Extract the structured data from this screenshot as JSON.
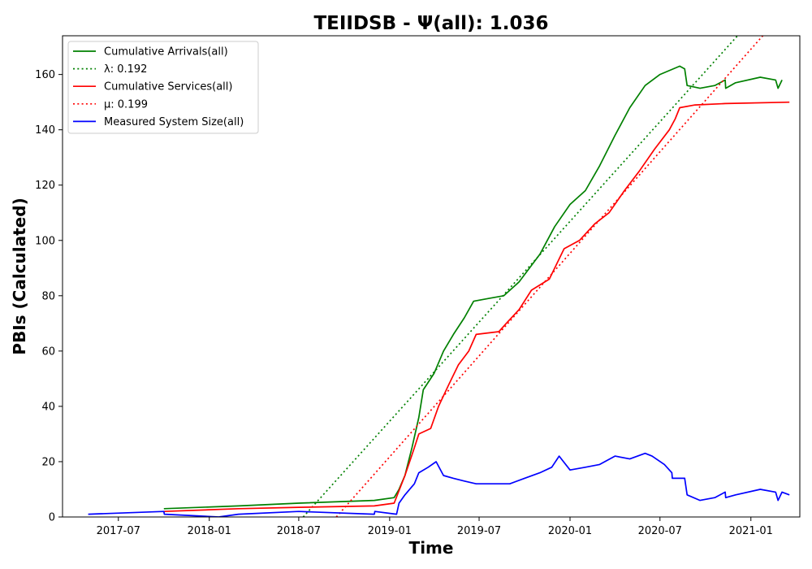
{
  "chart_data": {
    "type": "line",
    "title": "TEIIDSB -  Ψ(all): 1.036",
    "xlabel": "Time",
    "ylabel": "PBIs (Calculated)",
    "xlim": [
      "2017-03-10",
      "2021-04-10"
    ],
    "ylim": [
      0,
      174
    ],
    "x_ticks": [
      "2017-07",
      "2018-01",
      "2018-07",
      "2019-01",
      "2019-07",
      "2020-01",
      "2020-07",
      "2021-01"
    ],
    "y_ticks": [
      0,
      20,
      40,
      60,
      80,
      100,
      120,
      140,
      160
    ],
    "grid": false,
    "legend": "top-left",
    "series": [
      {
        "name": "Cumulative Arrivals(all)",
        "style": "solid",
        "color": "#008000",
        "points": [
          [
            "2017-10-01",
            3
          ],
          [
            "2018-03-01",
            4
          ],
          [
            "2018-07-01",
            5
          ],
          [
            "2018-12-01",
            6
          ],
          [
            "2019-01-10",
            7
          ],
          [
            "2019-01-20",
            10
          ],
          [
            "2019-02-01",
            15
          ],
          [
            "2019-02-15",
            25
          ],
          [
            "2019-03-01",
            36
          ],
          [
            "2019-03-10",
            46
          ],
          [
            "2019-04-01",
            52
          ],
          [
            "2019-04-20",
            60
          ],
          [
            "2019-05-10",
            66
          ],
          [
            "2019-06-01",
            72
          ],
          [
            "2019-06-20",
            78
          ],
          [
            "2019-07-20",
            79
          ],
          [
            "2019-08-20",
            80
          ],
          [
            "2019-09-20",
            85
          ],
          [
            "2019-11-01",
            95
          ],
          [
            "2019-12-01",
            105
          ],
          [
            "2020-01-01",
            113
          ],
          [
            "2020-02-01",
            118
          ],
          [
            "2020-03-01",
            127
          ],
          [
            "2020-04-01",
            138
          ],
          [
            "2020-05-01",
            148
          ],
          [
            "2020-06-01",
            156
          ],
          [
            "2020-07-01",
            160
          ],
          [
            "2020-08-10",
            163
          ],
          [
            "2020-08-20",
            162
          ],
          [
            "2020-08-25",
            156
          ],
          [
            "2020-09-20",
            155
          ],
          [
            "2020-10-20",
            156
          ],
          [
            "2020-11-10",
            158
          ],
          [
            "2020-11-11",
            155
          ],
          [
            "2020-12-01",
            157
          ],
          [
            "2021-01-20",
            159
          ],
          [
            "2021-02-20",
            158
          ],
          [
            "2021-02-25",
            155
          ],
          [
            "2021-03-05",
            158
          ]
        ]
      },
      {
        "name": "λ: 0.192",
        "style": "dotted",
        "color": "#008000",
        "points": [
          [
            "2018-07-10",
            0
          ],
          [
            "2020-12-05",
            174
          ]
        ]
      },
      {
        "name": "Cumulative Services(all)",
        "style": "solid",
        "color": "#ff0000",
        "points": [
          [
            "2017-10-01",
            2
          ],
          [
            "2018-03-01",
            3
          ],
          [
            "2018-07-01",
            3.5
          ],
          [
            "2018-12-01",
            4
          ],
          [
            "2019-01-10",
            5
          ],
          [
            "2019-02-01",
            15
          ],
          [
            "2019-02-20",
            25
          ],
          [
            "2019-03-01",
            30
          ],
          [
            "2019-03-25",
            32
          ],
          [
            "2019-04-10",
            40
          ],
          [
            "2019-05-01",
            48
          ],
          [
            "2019-05-20",
            55
          ],
          [
            "2019-06-10",
            60
          ],
          [
            "2019-06-25",
            66
          ],
          [
            "2019-08-10",
            67
          ],
          [
            "2019-08-25",
            70
          ],
          [
            "2019-09-20",
            75
          ],
          [
            "2019-10-15",
            82
          ],
          [
            "2019-11-20",
            86
          ],
          [
            "2019-12-20",
            97
          ],
          [
            "2020-01-20",
            100
          ],
          [
            "2020-02-20",
            106
          ],
          [
            "2020-03-20",
            110
          ],
          [
            "2020-04-20",
            118
          ],
          [
            "2020-05-20",
            125
          ],
          [
            "2020-06-20",
            133
          ],
          [
            "2020-07-20",
            140
          ],
          [
            "2020-08-01",
            144
          ],
          [
            "2020-08-10",
            148
          ],
          [
            "2020-09-10",
            149
          ],
          [
            "2020-11-10",
            149.5
          ],
          [
            "2021-03-20",
            150
          ]
        ]
      },
      {
        "name": "μ: 0.199",
        "style": "dotted",
        "color": "#ff0000",
        "points": [
          [
            "2018-09-15",
            0
          ],
          [
            "2021-01-25",
            174
          ]
        ]
      },
      {
        "name": "Measured System Size(all)",
        "style": "solid",
        "color": "#0000ff",
        "points": [
          [
            "2017-05-01",
            1
          ],
          [
            "2017-10-01",
            2
          ],
          [
            "2017-10-02",
            1
          ],
          [
            "2018-01-20",
            0
          ],
          [
            "2018-03-01",
            1
          ],
          [
            "2018-07-01",
            2
          ],
          [
            "2018-12-01",
            1
          ],
          [
            "2018-12-02",
            2
          ],
          [
            "2019-01-15",
            1
          ],
          [
            "2019-01-20",
            5
          ],
          [
            "2019-02-01",
            8
          ],
          [
            "2019-02-20",
            12
          ],
          [
            "2019-03-01",
            16
          ],
          [
            "2019-03-20",
            18
          ],
          [
            "2019-04-05",
            20
          ],
          [
            "2019-04-20",
            15
          ],
          [
            "2019-05-10",
            14
          ],
          [
            "2019-06-01",
            13
          ],
          [
            "2019-06-25",
            12
          ],
          [
            "2019-09-01",
            12
          ],
          [
            "2019-10-01",
            14
          ],
          [
            "2019-11-01",
            16
          ],
          [
            "2019-11-25",
            18
          ],
          [
            "2019-12-10",
            22
          ],
          [
            "2020-01-01",
            17
          ],
          [
            "2020-02-01",
            18
          ],
          [
            "2020-03-01",
            19
          ],
          [
            "2020-04-01",
            22
          ],
          [
            "2020-05-01",
            21
          ],
          [
            "2020-06-01",
            23
          ],
          [
            "2020-06-15",
            22
          ],
          [
            "2020-07-10",
            19
          ],
          [
            "2020-07-25",
            16
          ],
          [
            "2020-07-26",
            14
          ],
          [
            "2020-08-20",
            14
          ],
          [
            "2020-08-25",
            8
          ],
          [
            "2020-09-20",
            6
          ],
          [
            "2020-10-20",
            7
          ],
          [
            "2020-11-10",
            9
          ],
          [
            "2020-11-11",
            7
          ],
          [
            "2020-12-01",
            8
          ],
          [
            "2021-01-20",
            10
          ],
          [
            "2021-02-20",
            9
          ],
          [
            "2021-02-25",
            6
          ],
          [
            "2021-03-05",
            9
          ],
          [
            "2021-03-20",
            8
          ]
        ]
      }
    ]
  }
}
